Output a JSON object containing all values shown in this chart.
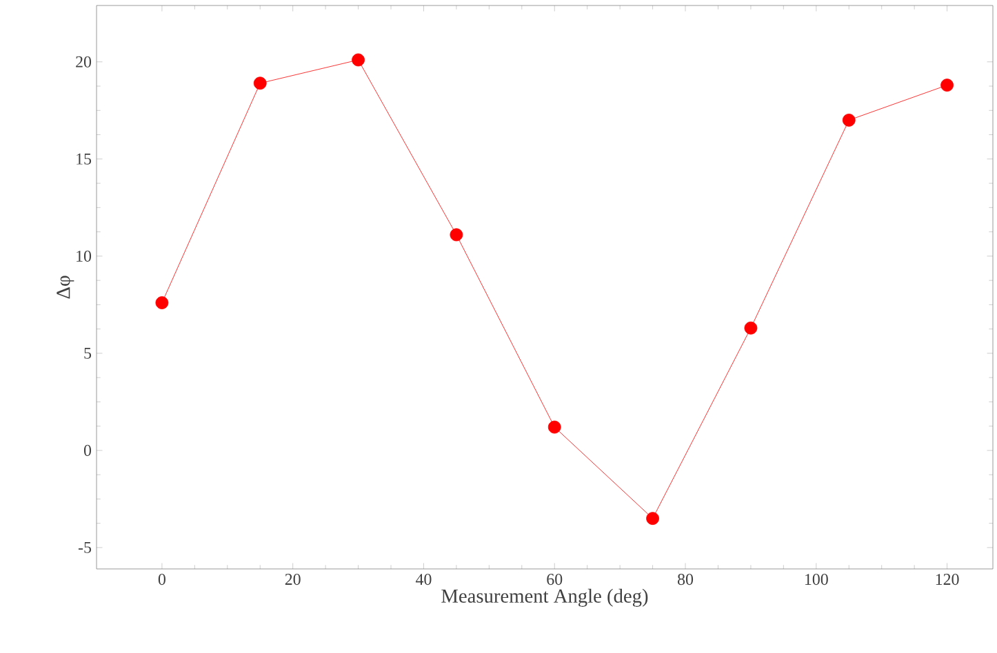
{
  "chart_data": {
    "type": "line",
    "xlabel": "Measurement Angle (deg)",
    "ylabel": "Δφ",
    "x": [
      0,
      15,
      30,
      45,
      60,
      75,
      90,
      105,
      120
    ],
    "series": [
      {
        "color": "#ff0000",
        "values": [
          7.6,
          18.9,
          20.1,
          11.1,
          1.2,
          -3.5,
          6.3,
          17.0,
          18.8
        ]
      }
    ],
    "xlim": [
      -10,
      127
    ],
    "ylim": [
      -6.1,
      22.9
    ],
    "xticks": [
      0,
      20,
      40,
      60,
      80,
      100,
      120
    ],
    "yticks": [
      -5,
      0,
      5,
      10,
      15,
      20
    ],
    "marker": "circle",
    "line_style": "solid"
  }
}
